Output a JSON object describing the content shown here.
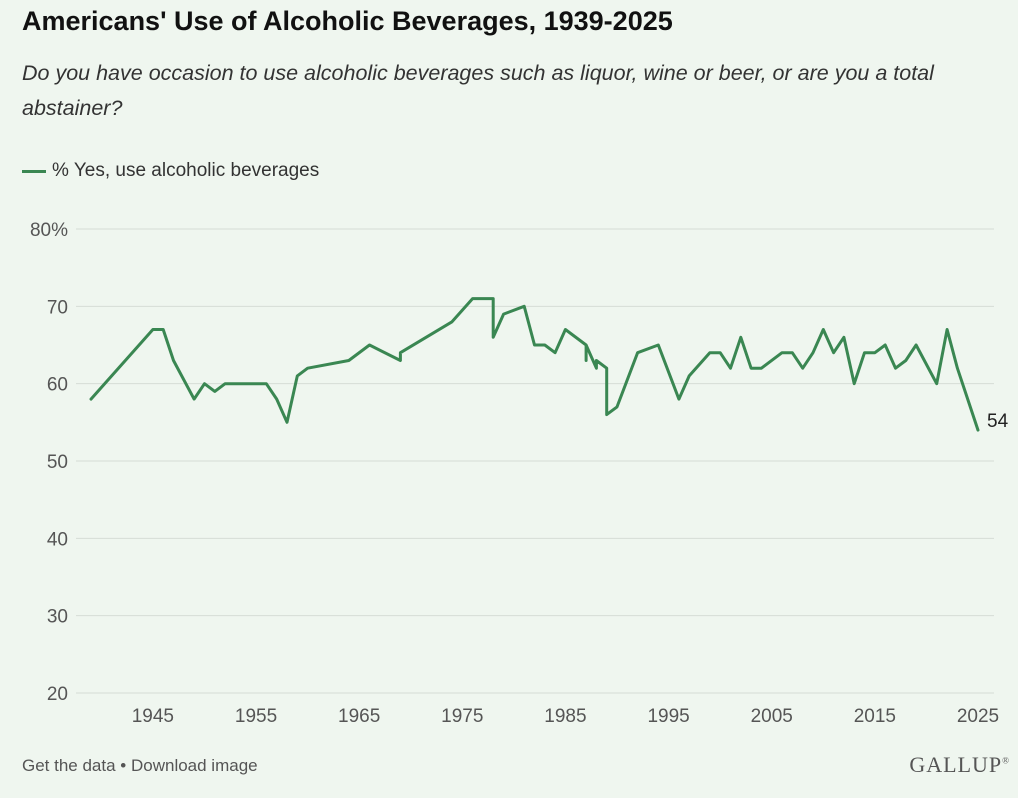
{
  "header": {
    "title": "Americans' Use of Alcoholic Beverages, 1939-2025",
    "subtitle": "Do you have occasion to use alcoholic beverages such as liquor, wine or beer, or are you a total abstainer?"
  },
  "footer": {
    "get_data": "Get the data",
    "separator": " • ",
    "download": "Download image",
    "logo": "GALLUP",
    "logo_mark": "®"
  },
  "colors": {
    "line": "#3a8752",
    "grid": "#d6dcd6",
    "tick": "#555555",
    "background": "#eff6ef"
  },
  "chart_data": {
    "type": "line",
    "title": "Americans' Use of Alcoholic Beverages, 1939-2025",
    "subtitle": "Do you have occasion to use alcoholic beverages such as liquor, wine or beer, or are you a total abstainer?",
    "xlabel": "",
    "ylabel": "",
    "xlim": [
      1939,
      2025
    ],
    "ylim": [
      20,
      80
    ],
    "yticks": [
      20,
      30,
      40,
      50,
      60,
      70,
      80
    ],
    "ytick_labels": [
      "20",
      "30",
      "40",
      "50",
      "60",
      "70",
      "80%"
    ],
    "xticks": [
      1945,
      1955,
      1965,
      1975,
      1985,
      1995,
      2005,
      2015,
      2025
    ],
    "xtick_labels": [
      "1945",
      "1955",
      "1965",
      "1975",
      "1985",
      "1995",
      "2005",
      "2015",
      "2025"
    ],
    "grid": true,
    "legend_position": "top-left",
    "end_label": "54",
    "series": [
      {
        "name": "% Yes, use alcoholic beverages",
        "color": "#3a8752",
        "x": [
          1939,
          1945,
          1946,
          1947,
          1949,
          1950,
          1951,
          1952,
          1956,
          1957,
          1958,
          1959,
          1960,
          1964,
          1966,
          1969,
          1969,
          1974,
          1976,
          1977,
          1978,
          1978,
          1979,
          1981,
          1982,
          1983,
          1984,
          1985,
          1987,
          1987,
          1987,
          1988,
          1988,
          1989,
          1989,
          1990,
          1992,
          1994,
          1996,
          1997,
          1999,
          2000,
          2001,
          2002,
          2003,
          2004,
          2006,
          2007,
          2008,
          2009,
          2010,
          2011,
          2012,
          2013,
          2014,
          2015,
          2016,
          2017,
          2018,
          2019,
          2021,
          2022,
          2023,
          2025
        ],
        "y": [
          58,
          67,
          67,
          63,
          58,
          60,
          59,
          60,
          60,
          58,
          55,
          61,
          62,
          63,
          65,
          63,
          64,
          68,
          71,
          71,
          71,
          66,
          69,
          70,
          65,
          65,
          64,
          67,
          65,
          63,
          65,
          62,
          63,
          62,
          56,
          57,
          64,
          65,
          58,
          61,
          64,
          64,
          62,
          66,
          62,
          62,
          64,
          64,
          62,
          64,
          67,
          64,
          66,
          60,
          64,
          64,
          65,
          62,
          63,
          65,
          60,
          67,
          62,
          54
        ]
      }
    ]
  }
}
